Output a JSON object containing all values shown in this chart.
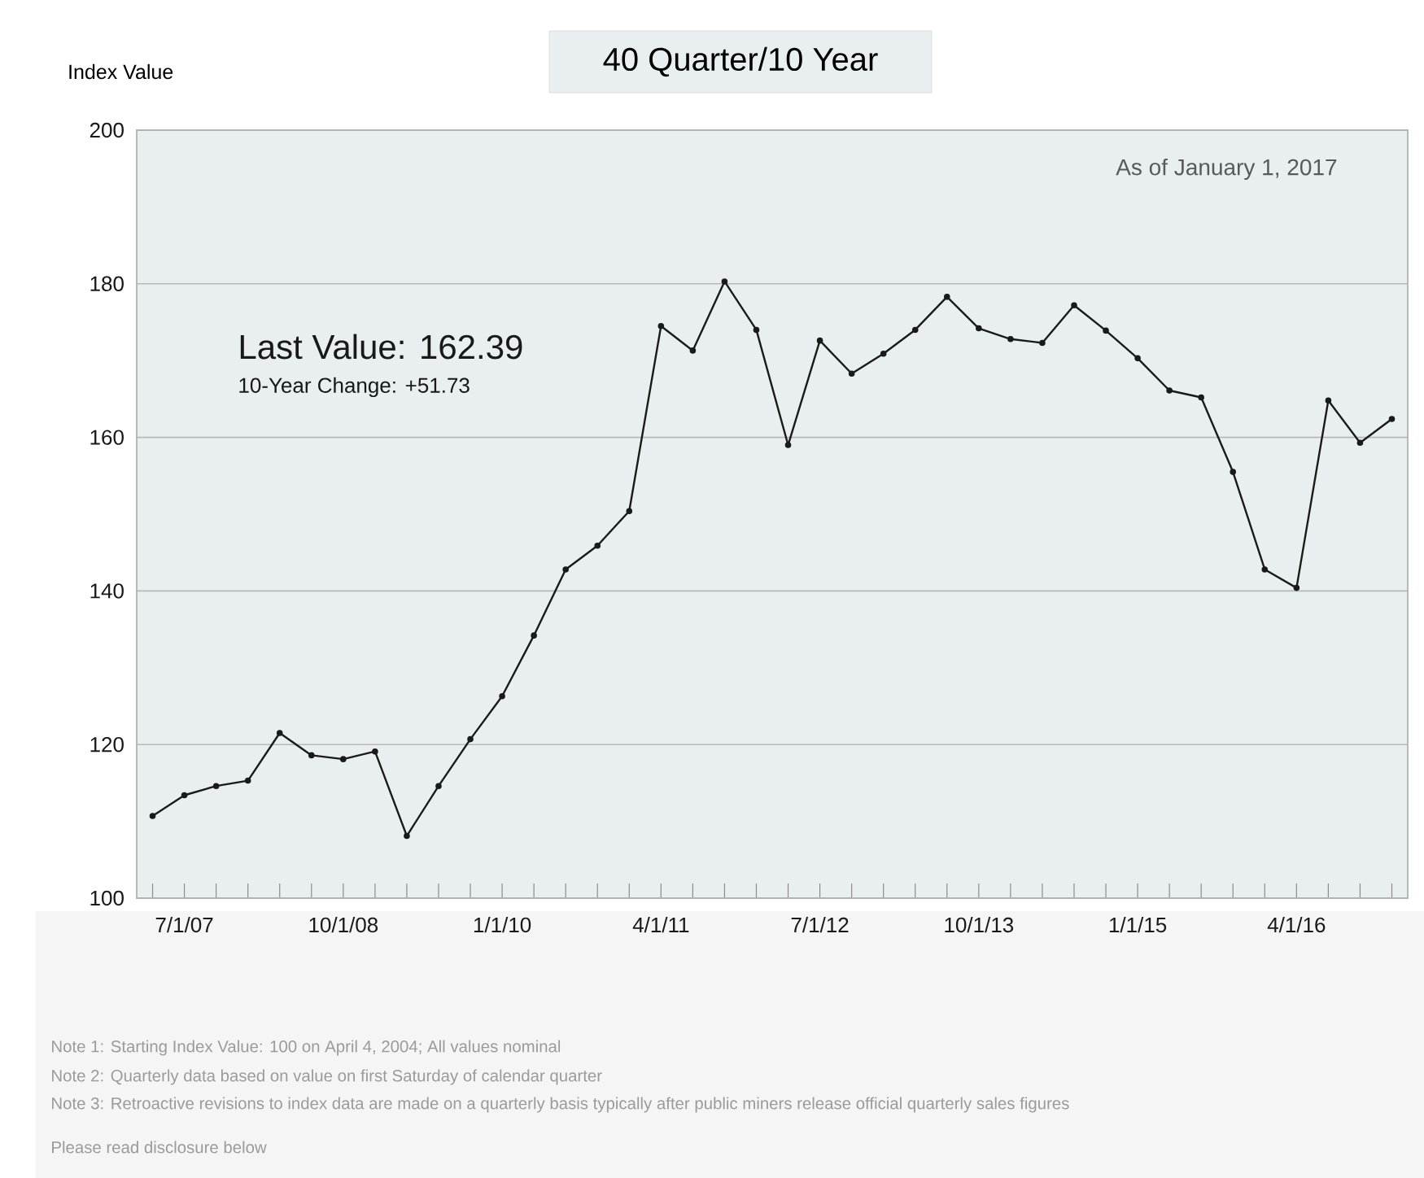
{
  "chart_data": {
    "type": "line",
    "title": "40 Quarter/10 Year",
    "ylabel": "Index Value",
    "categories": [
      null,
      "7/1/07",
      null,
      null,
      null,
      null,
      "10/1/08",
      null,
      null,
      null,
      null,
      "1/1/10",
      null,
      null,
      null,
      null,
      "4/1/11",
      null,
      null,
      null,
      null,
      "7/1/12",
      null,
      null,
      null,
      null,
      "10/1/13",
      null,
      null,
      null,
      null,
      "1/1/15",
      null,
      null,
      null,
      null,
      "4/1/16",
      null,
      null,
      null
    ],
    "series": [
      {
        "color": "#1a1a1a",
        "values": [
          110.7,
          113.4,
          114.6,
          115.3,
          121.5,
          118.6,
          118.1,
          119.1,
          108.1,
          114.6,
          120.7,
          126.3,
          134.2,
          142.8,
          145.9,
          150.4,
          174.5,
          171.3,
          180.3,
          174.0,
          159.0,
          172.6,
          168.3,
          170.9,
          174.0,
          178.3,
          174.2,
          172.8,
          172.3,
          177.2,
          173.9,
          170.3,
          166.1,
          165.2,
          155.5,
          142.8,
          140.4,
          164.8,
          159.3,
          162.39
        ]
      }
    ],
    "ylim": [
      100,
      200
    ],
    "yticks": [
      100,
      120,
      140,
      160,
      180,
      200
    ],
    "grid": "y",
    "marker": "circle",
    "line_style": "solid",
    "annotations": [
      "Last Value: 162.39",
      "10-Year Change: +51.73",
      "As of January 1, 2017",
      "Note 1: Starting Index Value: 100 on April 4, 2004; All values nominal",
      "Note 2: Quarterly data based on value on first Saturday of calendar quarter",
      "Note 3: Retroactive revisions to index data are made on a quarterly basis typically after public miners release official quarterly sales figures",
      "Please read disclosure below"
    ]
  }
}
